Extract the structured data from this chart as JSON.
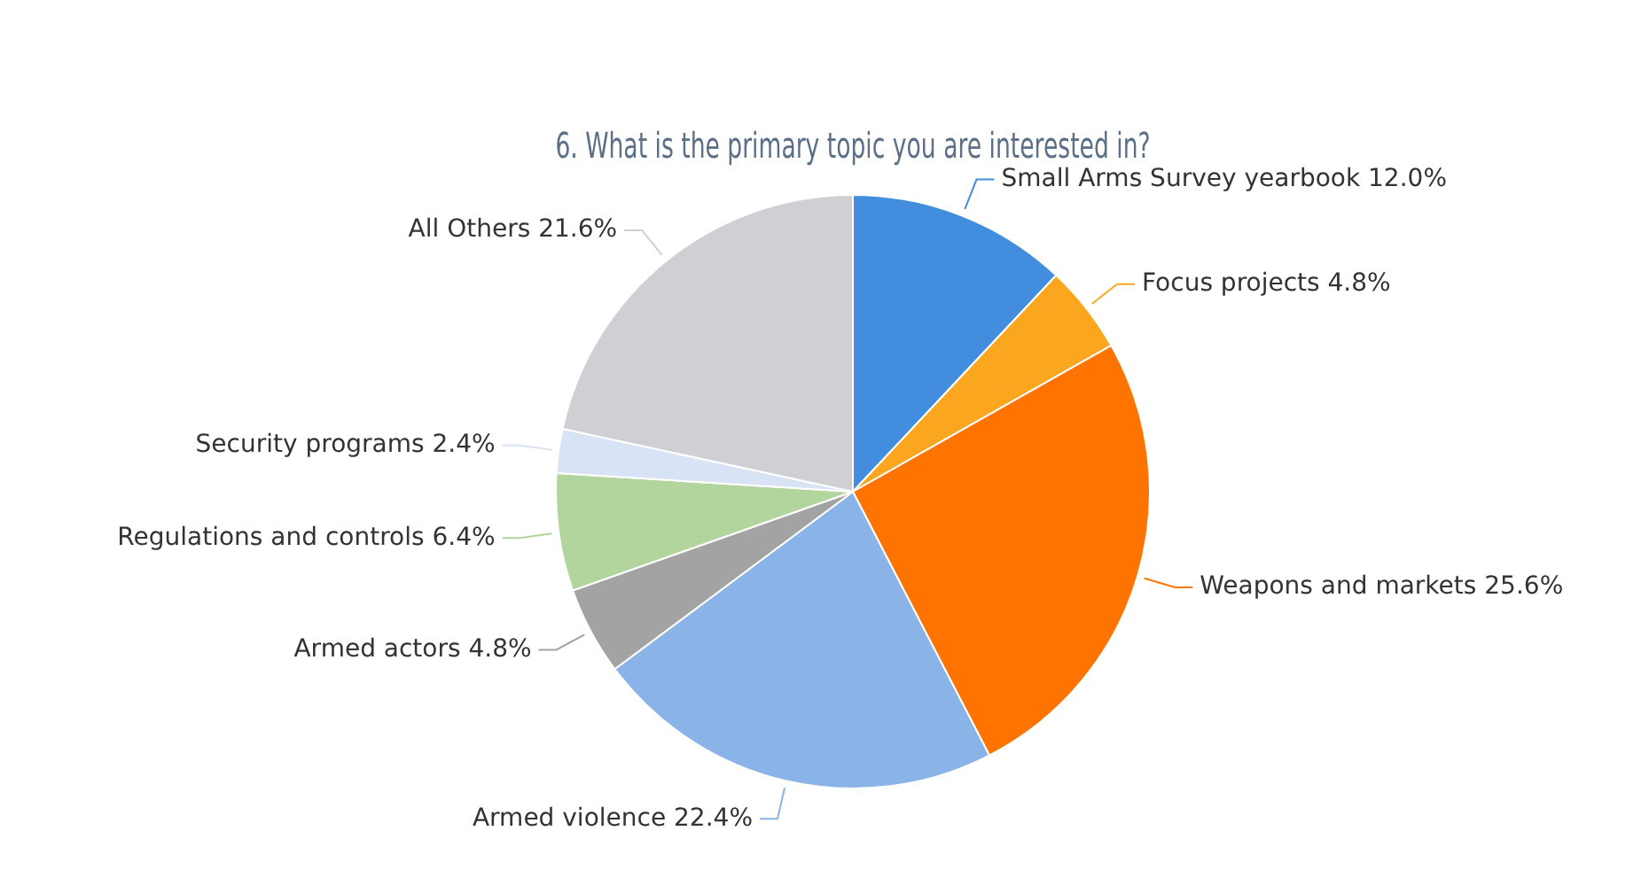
{
  "chart_data": {
    "type": "pie",
    "title": "6. What is the primary topic you are interested in?",
    "categories": [
      "Small Arms Survey yearbook",
      "Focus projects",
      "Weapons and markets",
      "Armed violence",
      "Armed actors",
      "Regulations and controls",
      "Security programs",
      "All Others"
    ],
    "values": [
      12.0,
      4.8,
      25.6,
      22.4,
      4.8,
      6.4,
      2.4,
      21.6
    ],
    "value_labels": [
      "12.0%",
      "4.8%",
      "25.6%",
      "22.4%",
      "4.8%",
      "6.4%",
      "2.4%",
      "21.6%"
    ],
    "colors": [
      "#438ddf",
      "#fba61f",
      "#ff7300",
      "#8ab3e8",
      "#a3a3a3",
      "#b2d49d",
      "#d8e3f5",
      "#cfcfd4"
    ]
  }
}
